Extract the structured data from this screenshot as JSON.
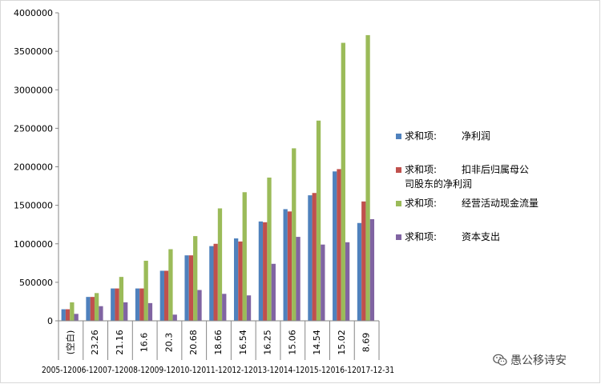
{
  "chart_data": {
    "type": "bar",
    "title": "",
    "xlabel": "",
    "ylabel": "",
    "ylim": [
      0,
      4000000
    ],
    "yticks": [
      "0",
      "500000",
      "1000000",
      "1500000",
      "2000000",
      "2500000",
      "3000000",
      "3500000",
      "4000000"
    ],
    "grid": false,
    "legend_position": "right",
    "categories_inner": [
      "(空白)",
      "23.26",
      "21.16",
      "16.6",
      "20.3",
      "20.68",
      "18.66",
      "16.54",
      "16.25",
      "15.06",
      "14.54",
      "15.02",
      "8.69"
    ],
    "categories_outer": [
      "2005-12-31",
      "2006-12-31",
      "2007-12-31",
      "2008-12-31",
      "2009-12-31",
      "2010-12-31",
      "2011-12-31",
      "2012-12-31",
      "2013-12-31",
      "2014-12-31",
      "2015-12-31",
      "2016-12-31",
      "2017-12-31"
    ],
    "outer_label_text": "2005-12006-12007-12008-12009-12010-12011-12012-12013-12014-12015-12016-12017-12-31",
    "series": [
      {
        "prefix": "求和项:",
        "name": "净利润",
        "color": "#4F81BD",
        "values": [
          150000,
          310000,
          420000,
          420000,
          650000,
          850000,
          970000,
          1070000,
          1290000,
          1450000,
          1630000,
          1940000,
          1270000
        ]
      },
      {
        "prefix": "求和项:",
        "name": "扣非后归属母公司股东的净利润",
        "color": "#C0504D",
        "values": [
          150000,
          310000,
          420000,
          420000,
          650000,
          850000,
          1000000,
          1030000,
          1280000,
          1420000,
          1660000,
          1970000,
          1550000
        ]
      },
      {
        "prefix": "求和项:",
        "name": "经营活动现金流量",
        "color": "#9BBB59",
        "values": [
          240000,
          360000,
          570000,
          780000,
          930000,
          1100000,
          1460000,
          1670000,
          1860000,
          2240000,
          2600000,
          3610000,
          3710000
        ]
      },
      {
        "prefix": "求和项:",
        "name": "资本支出",
        "color": "#8064A2",
        "values": [
          90000,
          190000,
          240000,
          230000,
          80000,
          400000,
          350000,
          330000,
          740000,
          1090000,
          990000,
          1020000,
          1320000
        ]
      }
    ]
  },
  "watermark": {
    "text": "愚公移诗安",
    "icon": "wechat-icon"
  }
}
